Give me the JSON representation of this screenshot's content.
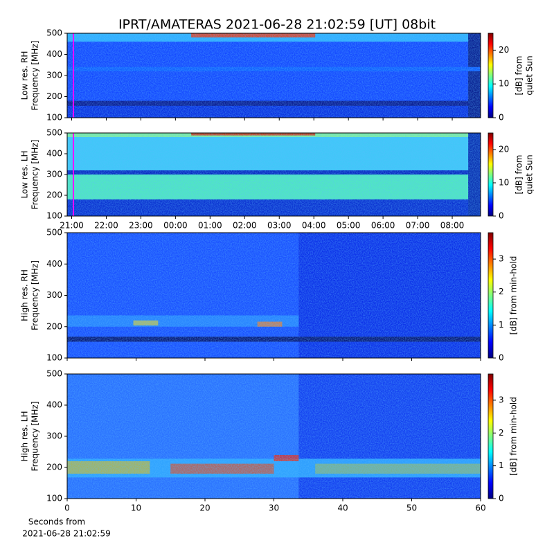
{
  "title": "IPRT/AMATERAS 2021-06-28 21:02:59 [UT]   08bit",
  "chart_data": [
    {
      "type": "heatmap",
      "ylabel": [
        "Low res. RH",
        "Frequency [MHz]"
      ],
      "ylim": [
        100,
        500
      ],
      "yticks": [
        100,
        200,
        300,
        400,
        500
      ],
      "xlim": [
        -0.13,
        11.82
      ],
      "marker_x": 0.05,
      "marker_color": "#ff00ff",
      "clim": [
        0,
        25
      ],
      "cticks": [
        0,
        10,
        20
      ],
      "clabel": [
        "[dB] from",
        "quiet Sun"
      ]
    },
    {
      "type": "heatmap",
      "ylabel": [
        "Low res. LH",
        "Frequency [MHz]"
      ],
      "ylim": [
        100,
        500
      ],
      "yticks": [
        100,
        200,
        300,
        400,
        500
      ],
      "xlim": [
        -0.13,
        11.82
      ],
      "marker_x": 0.05,
      "marker_color": "#ff00ff",
      "xticks": [
        {
          "value": 0,
          "label": "21:00"
        },
        {
          "value": 1,
          "label": "22:00"
        },
        {
          "value": 2,
          "label": "23:00"
        },
        {
          "value": 3,
          "label": "00:00"
        },
        {
          "value": 4,
          "label": "01:00"
        },
        {
          "value": 5,
          "label": "02:00"
        },
        {
          "value": 6,
          "label": "03:00"
        },
        {
          "value": 7,
          "label": "04:00"
        },
        {
          "value": 8,
          "label": "05:00"
        },
        {
          "value": 9,
          "label": "06:00"
        },
        {
          "value": 10,
          "label": "07:00"
        },
        {
          "value": 11,
          "label": "08:00"
        }
      ],
      "clim": [
        0,
        25
      ],
      "cticks": [
        0,
        10,
        20
      ],
      "clabel": [
        "[dB] from",
        "quiet Sun"
      ]
    },
    {
      "type": "heatmap",
      "ylabel": [
        "High res. RH",
        "Frequency [MHz]"
      ],
      "ylim": [
        100,
        500
      ],
      "yticks": [
        100,
        200,
        300,
        400,
        500
      ],
      "xlim": [
        0,
        60
      ],
      "clim": [
        0,
        3.8
      ],
      "cticks": [
        0,
        1,
        2,
        3
      ],
      "clabel": [
        "[dB] from min-hold"
      ]
    },
    {
      "type": "heatmap",
      "ylabel": [
        "High res. LH",
        "Frequency [MHz]"
      ],
      "ylim": [
        100,
        500
      ],
      "yticks": [
        100,
        200,
        300,
        400,
        500
      ],
      "xlim": [
        0,
        60
      ],
      "xticks": [
        0,
        10,
        20,
        30,
        40,
        50,
        60
      ],
      "xlabel": [
        "Seconds from",
        "2021-06-28 21:02:59"
      ],
      "clim": [
        0,
        3.8
      ],
      "cticks": [
        0,
        1,
        2,
        3
      ],
      "clabel": [
        "[dB] from min-hold"
      ]
    }
  ]
}
